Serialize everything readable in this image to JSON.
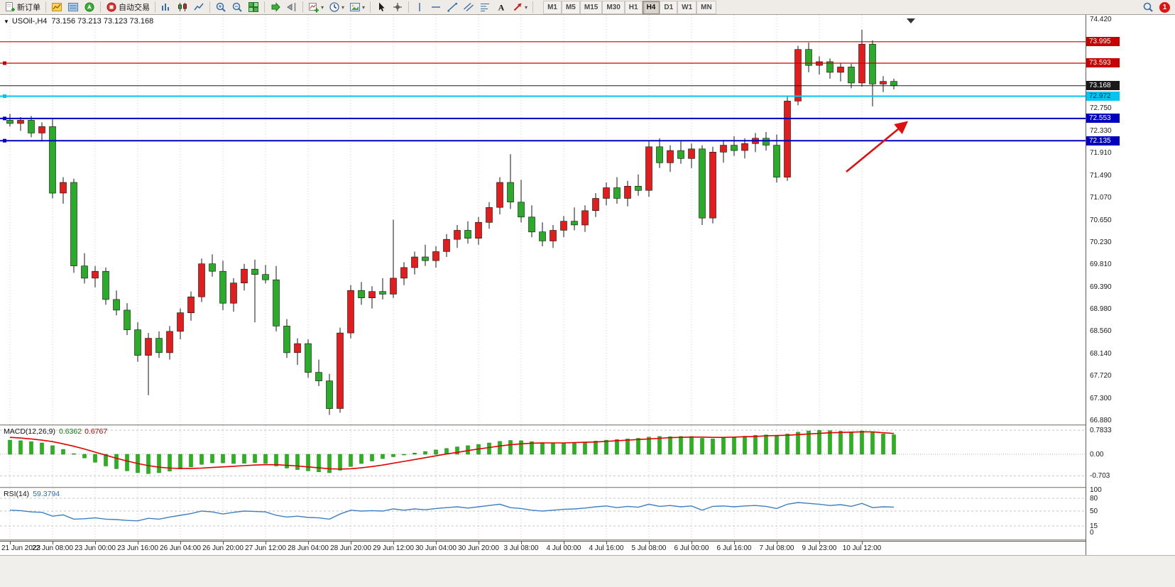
{
  "toolbar": {
    "new_order": {
      "label": "新订单"
    },
    "autotrade": {
      "label": "自动交易"
    },
    "left_icons": [
      "market-watch-icon",
      "data-window-icon",
      "navigator-icon"
    ],
    "icon_groups": [
      [
        "bar-chart-icon",
        "candlestick-chart-icon",
        "line-chart-icon"
      ],
      [
        "zoom-in-icon",
        "zoom-out-icon",
        "tile-windows-icon"
      ],
      [
        "auto-scroll-icon",
        "chart-shift-icon"
      ],
      [
        "indicators-icon",
        "periods-icon",
        "templates-icon"
      ],
      [
        "cursor-icon",
        "crosshair-icon"
      ],
      [
        "vertical-line-icon",
        "horizontal-line-icon",
        "trendline-icon",
        "channel-icon",
        "fibonacci-icon",
        "text-icon",
        "arrows-icon"
      ]
    ],
    "caret_icons": [
      "indicators-icon",
      "periods-icon",
      "templates-icon",
      "arrows-icon"
    ],
    "timeframes": [
      "M1",
      "M5",
      "M15",
      "M30",
      "H1",
      "H4",
      "D1",
      "W1",
      "MN"
    ],
    "active_timeframe": "H4",
    "notification_count": "1"
  },
  "chart_data": {
    "type": "candlestick",
    "symbol": "USOil-",
    "timeframe": "H4",
    "expander": "▼",
    "title_display": "USOil-,H4",
    "ohlc_display": "73.156 73.213 73.123 73.168",
    "ohlc_current": {
      "open": 73.156,
      "high": 73.213,
      "low": 73.123,
      "close": 73.168
    },
    "ylim": [
      66.8,
      74.5
    ],
    "up_color": "#e21d1d",
    "down_color": "#2aab2a",
    "wick_color": "#141414",
    "price_axis_labels": [
      "74.420",
      "72.750",
      "72.330",
      "71.910",
      "71.490",
      "71.070",
      "70.650",
      "70.230",
      "69.810",
      "69.390",
      "68.980",
      "68.560",
      "68.140",
      "67.720",
      "67.300",
      "66.880"
    ],
    "time_labels": [
      "21 Jun 2023",
      "22 Jun 08:00",
      "23 Jun 00:00",
      "23 Jun 16:00",
      "26 Jun 04:00",
      "26 Jun 20:00",
      "27 Jun 12:00",
      "28 Jun 04:00",
      "28 Jun 20:00",
      "29 Jun 12:00",
      "30 Jun 04:00",
      "30 Jun 20:00",
      "3 Jul 08:00",
      "4 Jul 00:00",
      "4 Jul 16:00",
      "5 Jul 08:00",
      "6 Jul 00:00",
      "6 Jul 16:00",
      "7 Jul 08:00",
      "9 Jul 23:00",
      "10 Jul 12:00"
    ],
    "candles_per_label": 4,
    "candles": [
      [
        72.52,
        72.64,
        72.4,
        72.46
      ],
      [
        72.46,
        72.58,
        72.32,
        72.52
      ],
      [
        72.52,
        72.6,
        72.2,
        72.28
      ],
      [
        72.28,
        72.48,
        72.12,
        72.4
      ],
      [
        72.4,
        72.55,
        71.05,
        71.15
      ],
      [
        71.15,
        71.45,
        70.95,
        71.35
      ],
      [
        71.35,
        71.42,
        69.65,
        69.78
      ],
      [
        69.78,
        70.02,
        69.45,
        69.55
      ],
      [
        69.55,
        69.78,
        69.38,
        69.68
      ],
      [
        69.68,
        69.75,
        69.05,
        69.15
      ],
      [
        69.15,
        69.32,
        68.85,
        68.95
      ],
      [
        68.95,
        69.08,
        68.48,
        68.58
      ],
      [
        68.58,
        68.72,
        67.98,
        68.1
      ],
      [
        68.1,
        68.52,
        67.35,
        68.42
      ],
      [
        68.42,
        68.55,
        68.05,
        68.15
      ],
      [
        68.15,
        68.65,
        68.02,
        68.55
      ],
      [
        68.55,
        68.98,
        68.4,
        68.9
      ],
      [
        68.9,
        69.3,
        68.75,
        69.2
      ],
      [
        69.2,
        69.92,
        69.1,
        69.82
      ],
      [
        69.82,
        70.0,
        69.58,
        69.68
      ],
      [
        69.68,
        69.88,
        68.95,
        69.08
      ],
      [
        69.08,
        69.55,
        68.92,
        69.46
      ],
      [
        69.46,
        69.82,
        69.32,
        69.72
      ],
      [
        69.72,
        69.9,
        68.72,
        69.62
      ],
      [
        69.62,
        69.8,
        69.45,
        69.52
      ],
      [
        69.52,
        69.78,
        68.55,
        68.65
      ],
      [
        68.65,
        68.78,
        68.05,
        68.15
      ],
      [
        68.15,
        68.42,
        67.92,
        68.32
      ],
      [
        68.32,
        68.4,
        67.68,
        67.78
      ],
      [
        67.78,
        68.02,
        67.52,
        67.62
      ],
      [
        67.62,
        67.75,
        66.98,
        67.1
      ],
      [
        67.1,
        68.62,
        67.02,
        68.52
      ],
      [
        68.52,
        69.42,
        68.42,
        69.32
      ],
      [
        69.32,
        69.48,
        69.05,
        69.18
      ],
      [
        69.18,
        69.4,
        68.98,
        69.3
      ],
      [
        69.3,
        69.55,
        69.15,
        69.25
      ],
      [
        69.25,
        70.65,
        69.18,
        69.55
      ],
      [
        69.55,
        69.85,
        69.42,
        69.75
      ],
      [
        69.75,
        70.05,
        69.62,
        69.95
      ],
      [
        69.95,
        70.18,
        69.78,
        69.88
      ],
      [
        69.88,
        70.15,
        69.75,
        70.05
      ],
      [
        70.05,
        70.38,
        69.95,
        70.28
      ],
      [
        70.28,
        70.55,
        70.12,
        70.45
      ],
      [
        70.45,
        70.62,
        70.2,
        70.3
      ],
      [
        70.3,
        70.7,
        70.18,
        70.6
      ],
      [
        70.6,
        70.98,
        70.48,
        70.88
      ],
      [
        70.88,
        71.45,
        70.75,
        71.35
      ],
      [
        71.35,
        71.88,
        70.85,
        70.98
      ],
      [
        70.98,
        71.4,
        70.6,
        70.7
      ],
      [
        70.7,
        70.92,
        70.32,
        70.42
      ],
      [
        70.42,
        70.6,
        70.15,
        70.25
      ],
      [
        70.25,
        70.55,
        70.12,
        70.45
      ],
      [
        70.45,
        70.72,
        70.32,
        70.62
      ],
      [
        70.62,
        70.88,
        70.45,
        70.55
      ],
      [
        70.55,
        70.92,
        70.42,
        70.82
      ],
      [
        70.82,
        71.15,
        70.7,
        71.05
      ],
      [
        71.05,
        71.35,
        70.92,
        71.25
      ],
      [
        71.25,
        71.45,
        70.95,
        71.05
      ],
      [
        71.05,
        71.38,
        70.9,
        71.28
      ],
      [
        71.28,
        71.5,
        71.1,
        71.2
      ],
      [
        71.2,
        72.12,
        71.08,
        72.02
      ],
      [
        72.02,
        72.18,
        71.62,
        71.72
      ],
      [
        71.72,
        72.05,
        71.55,
        71.95
      ],
      [
        71.95,
        72.12,
        71.7,
        71.8
      ],
      [
        71.8,
        72.08,
        71.62,
        71.98
      ],
      [
        71.98,
        72.05,
        70.55,
        70.68
      ],
      [
        70.68,
        72.02,
        70.58,
        71.92
      ],
      [
        71.92,
        72.15,
        71.72,
        72.05
      ],
      [
        72.05,
        72.22,
        71.85,
        71.95
      ],
      [
        71.95,
        72.18,
        71.8,
        72.08
      ],
      [
        72.08,
        72.28,
        71.92,
        72.18
      ],
      [
        72.18,
        72.3,
        71.95,
        72.05
      ],
      [
        72.05,
        72.25,
        71.35,
        71.45
      ],
      [
        71.45,
        72.97,
        71.38,
        72.88
      ],
      [
        72.88,
        73.92,
        72.8,
        73.85
      ],
      [
        73.85,
        73.98,
        73.42,
        73.55
      ],
      [
        73.55,
        73.72,
        73.38,
        73.62
      ],
      [
        73.62,
        73.68,
        73.3,
        73.42
      ],
      [
        73.42,
        73.6,
        73.25,
        73.52
      ],
      [
        73.52,
        73.58,
        73.12,
        73.22
      ],
      [
        73.22,
        74.22,
        73.15,
        73.95
      ],
      [
        73.95,
        74.02,
        72.78,
        73.2
      ],
      [
        73.2,
        73.35,
        73.05,
        73.25
      ],
      [
        73.25,
        73.3,
        73.1,
        73.168
      ]
    ],
    "hlines": [
      {
        "price": 73.995,
        "label": "73.995",
        "color": "#c80000",
        "width": 1.2,
        "badge_bg": "#c80000",
        "badge_fg": "#ffffff",
        "handle": false,
        "role": "resistance-line"
      },
      {
        "price": 73.593,
        "label": "73.593",
        "color": "#c80000",
        "width": 1.2,
        "badge_bg": "#c80000",
        "badge_fg": "#ffffff",
        "handle": true,
        "role": "resistance-line"
      },
      {
        "price": 73.168,
        "label": "73.168",
        "color": "#1a1a1a",
        "width": 1,
        "badge_bg": "#1a1a1a",
        "badge_fg": "#ffffff",
        "handle": false,
        "role": "current-price"
      },
      {
        "price": 72.972,
        "label": "72.972",
        "color": "#00c5f0",
        "width": 2,
        "badge_bg": "#00c5f0",
        "badge_fg": "#00303f",
        "handle": true,
        "role": "support-line"
      },
      {
        "price": 72.553,
        "label": "72.553",
        "color": "#0000c0",
        "width": 2,
        "badge_bg": "#0000c0",
        "badge_fg": "#ffffff",
        "handle": true,
        "role": "support-line"
      },
      {
        "price": 72.135,
        "label": "72.135",
        "color": "#0000c0",
        "width": 2,
        "badge_bg": "#0000c0",
        "badge_fg": "#ffffff",
        "handle": true,
        "role": "support-line"
      }
    ],
    "annotation_arrow": {
      "from": [
        1192,
        242
      ],
      "to": [
        1276,
        173
      ],
      "color": "#e01010"
    },
    "macd": {
      "name_display": "MACD(12,26,9)",
      "main_display": "0.6362",
      "signal_display": "0.6767",
      "axis_labels": [
        "0.7833",
        "0.00",
        "-0.703"
      ],
      "hist_color": "#29b41c",
      "signal_color": "#e00000",
      "hist": [
        0.46,
        0.44,
        0.41,
        0.37,
        0.28,
        0.16,
        0.02,
        -0.12,
        -0.26,
        -0.38,
        -0.47,
        -0.54,
        -0.6,
        -0.63,
        -0.6,
        -0.55,
        -0.48,
        -0.41,
        -0.33,
        -0.28,
        -0.28,
        -0.3,
        -0.29,
        -0.27,
        -0.3,
        -0.38,
        -0.45,
        -0.5,
        -0.54,
        -0.57,
        -0.6,
        -0.52,
        -0.4,
        -0.3,
        -0.22,
        -0.14,
        -0.08,
        -0.02,
        0.04,
        0.09,
        0.14,
        0.19,
        0.24,
        0.28,
        0.32,
        0.37,
        0.42,
        0.45,
        0.44,
        0.41,
        0.38,
        0.36,
        0.36,
        0.38,
        0.4,
        0.43,
        0.46,
        0.48,
        0.5,
        0.52,
        0.56,
        0.58,
        0.57,
        0.58,
        0.58,
        0.52,
        0.5,
        0.53,
        0.56,
        0.59,
        0.62,
        0.63,
        0.6,
        0.66,
        0.72,
        0.76,
        0.78,
        0.77,
        0.75,
        0.73,
        0.76,
        0.72,
        0.66,
        0.6362
      ],
      "signal": [
        0.55,
        0.53,
        0.5,
        0.46,
        0.41,
        0.34,
        0.26,
        0.17,
        0.07,
        -0.03,
        -0.13,
        -0.22,
        -0.3,
        -0.37,
        -0.42,
        -0.45,
        -0.46,
        -0.46,
        -0.45,
        -0.43,
        -0.41,
        -0.39,
        -0.37,
        -0.35,
        -0.34,
        -0.34,
        -0.36,
        -0.38,
        -0.41,
        -0.44,
        -0.47,
        -0.48,
        -0.47,
        -0.44,
        -0.4,
        -0.35,
        -0.29,
        -0.23,
        -0.17,
        -0.11,
        -0.05,
        0.01,
        0.06,
        0.12,
        0.17,
        0.22,
        0.27,
        0.31,
        0.34,
        0.36,
        0.37,
        0.37,
        0.37,
        0.38,
        0.39,
        0.4,
        0.42,
        0.44,
        0.46,
        0.48,
        0.5,
        0.52,
        0.54,
        0.55,
        0.56,
        0.56,
        0.55,
        0.55,
        0.56,
        0.57,
        0.58,
        0.6,
        0.61,
        0.62,
        0.64,
        0.66,
        0.68,
        0.7,
        0.71,
        0.72,
        0.73,
        0.73,
        0.7,
        0.6767
      ]
    },
    "rsi": {
      "name_display": "RSI(14)",
      "value_display": "59.3794",
      "axis_labels": [
        "100",
        "80",
        "50",
        "15",
        "0"
      ],
      "levels": [
        80,
        50,
        15
      ],
      "line_color": "#3f7fc1",
      "values": [
        52,
        51,
        48,
        47,
        38,
        41,
        31,
        32,
        34,
        31,
        30,
        28,
        27,
        33,
        31,
        36,
        40,
        44,
        50,
        48,
        43,
        47,
        50,
        49,
        48,
        40,
        36,
        38,
        35,
        34,
        31,
        43,
        52,
        50,
        51,
        50,
        55,
        52,
        55,
        53,
        56,
        58,
        60,
        57,
        60,
        63,
        66,
        58,
        56,
        52,
        50,
        52,
        54,
        55,
        57,
        60,
        62,
        58,
        61,
        59,
        66,
        61,
        63,
        60,
        62,
        52,
        61,
        62,
        60,
        62,
        63,
        61,
        56,
        66,
        70,
        68,
        66,
        63,
        65,
        61,
        68,
        58,
        60,
        59.3794
      ]
    }
  }
}
